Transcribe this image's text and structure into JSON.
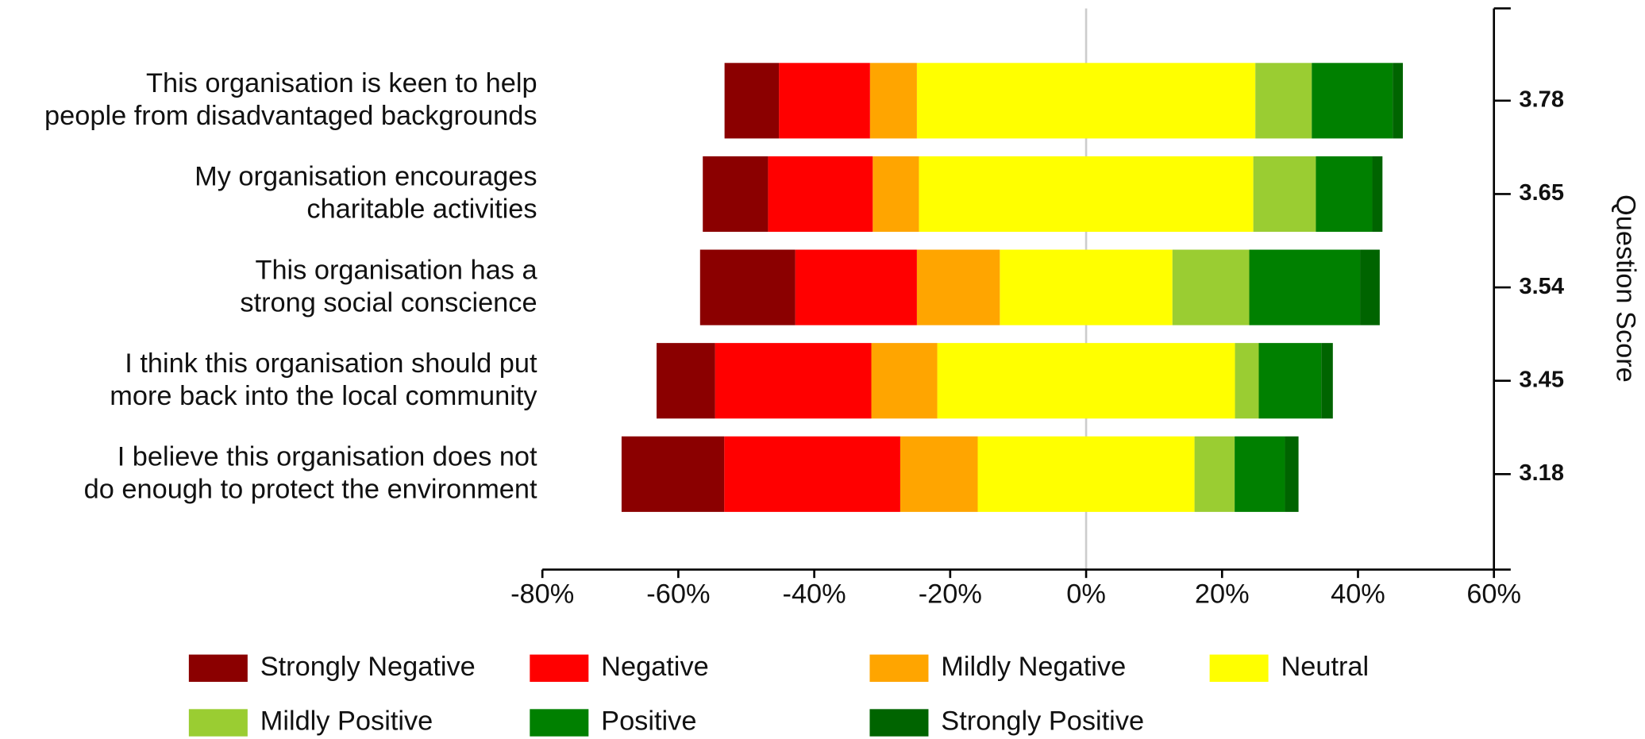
{
  "chart_data": {
    "type": "diverging-bar",
    "categories": [
      [
        "This organisation is keen to help",
        "people from disadvantaged backgrounds"
      ],
      [
        "My organisation encourages",
        "charitable activities"
      ],
      [
        "This organisation has a",
        "strong social conscience"
      ],
      [
        "I think this organisation should put",
        "more back into the local community"
      ],
      [
        "I believe this organisation does not",
        "do enough to protect the environment"
      ]
    ],
    "series": [
      {
        "name": "Strongly Negative",
        "color": "#8b0000",
        "values": [
          8.0,
          9.6,
          14.0,
          8.6,
          15.1
        ]
      },
      {
        "name": "Negative",
        "color": "#ff0000",
        "values": [
          13.4,
          15.4,
          17.9,
          23.0,
          25.9
        ]
      },
      {
        "name": "Mildly Negative",
        "color": "#ffa500",
        "values": [
          6.9,
          6.8,
          12.2,
          9.7,
          11.4
        ]
      },
      {
        "name": "Neutral",
        "color": "#ffff00",
        "values": [
          49.8,
          49.2,
          25.4,
          43.8,
          31.9
        ]
      },
      {
        "name": "Mildly Positive",
        "color": "#9acd32",
        "values": [
          8.3,
          9.2,
          11.3,
          3.5,
          5.9
        ]
      },
      {
        "name": "Positive",
        "color": "#008000",
        "values": [
          11.9,
          8.3,
          16.3,
          9.2,
          7.4
        ]
      },
      {
        "name": "Strongly Positive",
        "color": "#006400",
        "values": [
          1.5,
          1.5,
          2.9,
          1.7,
          2.0
        ]
      }
    ],
    "xlim": [
      -80,
      60
    ],
    "xticks": [
      {
        "value": -80,
        "label": "-80%"
      },
      {
        "value": -60,
        "label": "-60%"
      },
      {
        "value": -40,
        "label": "-40%"
      },
      {
        "value": -20,
        "label": "-20%"
      },
      {
        "value": 0,
        "label": "0%"
      },
      {
        "value": 20,
        "label": "20%"
      },
      {
        "value": 40,
        "label": "40%"
      },
      {
        "value": 60,
        "label": "60%"
      }
    ],
    "y2_label": "Question Score",
    "scores": [
      3.78,
      3.65,
      3.54,
      3.45,
      3.18
    ]
  }
}
